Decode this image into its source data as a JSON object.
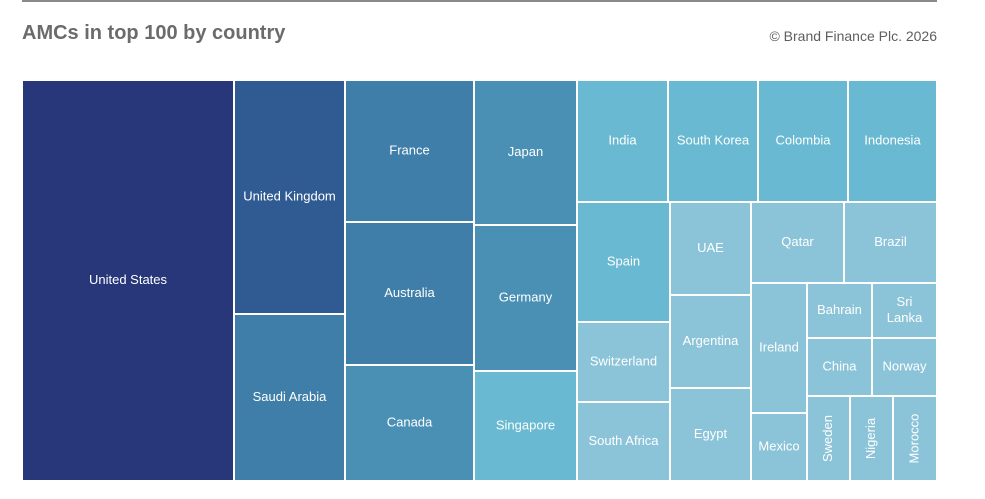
{
  "header": {
    "title": "AMCs in top 100 by country",
    "copyright": "© Brand Finance Plc. 2026"
  },
  "chart_data": {
    "type": "treemap",
    "title": "AMCs in top 100 by country",
    "legend": "none",
    "grid": false,
    "palette": {
      "level1": "#27377a",
      "level2": "#2f5b92",
      "level3": "#3f7ea8",
      "level4": "#4a90b5",
      "level5": "#68b9d1",
      "level6": "#8bc4d8",
      "border": "#ffffff"
    },
    "cells": [
      {
        "label": "United States",
        "level": "level1"
      },
      {
        "label": "United Kingdom",
        "level": "level2"
      },
      {
        "label": "Saudi Arabia",
        "level": "level3"
      },
      {
        "label": "France",
        "level": "level3"
      },
      {
        "label": "Australia",
        "level": "level3"
      },
      {
        "label": "Canada",
        "level": "level4"
      },
      {
        "label": "Japan",
        "level": "level4"
      },
      {
        "label": "Germany",
        "level": "level4"
      },
      {
        "label": "Singapore",
        "level": "level5"
      },
      {
        "label": "India",
        "level": "level5"
      },
      {
        "label": "South Korea",
        "level": "level5"
      },
      {
        "label": "Colombia",
        "level": "level5"
      },
      {
        "label": "Indonesia",
        "level": "level5"
      },
      {
        "label": "Spain",
        "level": "level5"
      },
      {
        "label": "Switzerland",
        "level": "level6"
      },
      {
        "label": "South Africa",
        "level": "level6"
      },
      {
        "label": "UAE",
        "level": "level6"
      },
      {
        "label": "Argentina",
        "level": "level6"
      },
      {
        "label": "Egypt",
        "level": "level6"
      },
      {
        "label": "Qatar",
        "level": "level6"
      },
      {
        "label": "Brazil",
        "level": "level6"
      },
      {
        "label": "Ireland",
        "level": "level6"
      },
      {
        "label": "Mexico",
        "level": "level6"
      },
      {
        "label": "Bahrain",
        "level": "level6"
      },
      {
        "label": "Sri Lanka",
        "level": "level6"
      },
      {
        "label": "China",
        "level": "level6"
      },
      {
        "label": "Norway",
        "level": "level6"
      },
      {
        "label": "Sweden",
        "level": "level6"
      },
      {
        "label": "Nigeria",
        "level": "level6"
      },
      {
        "label": "Morocco",
        "level": "level6"
      }
    ]
  }
}
